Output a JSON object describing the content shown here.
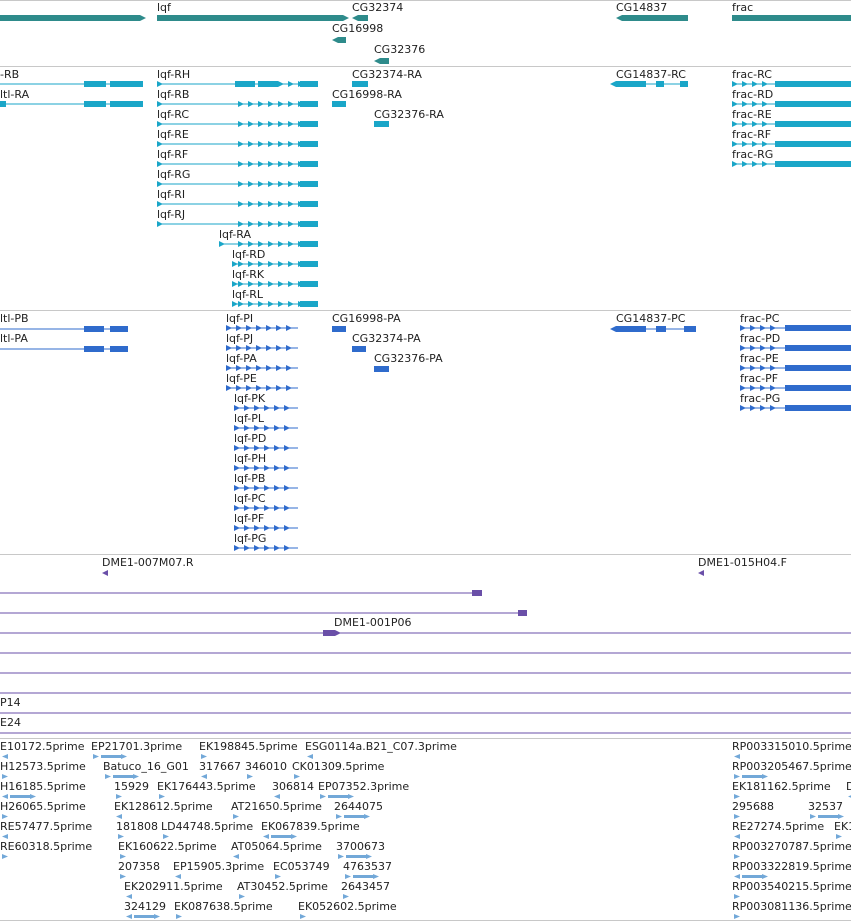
{
  "colors": {
    "gene": "#2e8b8b",
    "transcript": "#1aa6c8",
    "protein": "#2f6bcc",
    "clone": "#6a4fa8",
    "est": "#72a8d8",
    "divider": "#c8c8c8"
  },
  "tracks": {
    "genes": {
      "labels": [
        "lqf",
        "CG32374",
        "CG16998",
        "CG32376",
        "CG14837",
        "frac"
      ]
    },
    "transcripts": {
      "labels": [
        "-RB",
        "ltl-RA",
        "lqf-RH",
        "lqf-RB",
        "lqf-RC",
        "lqf-RE",
        "lqf-RF",
        "lqf-RG",
        "lqf-RI",
        "lqf-RJ",
        "lqf-RA",
        "lqf-RD",
        "lqf-RK",
        "lqf-RL",
        "CG32374-RA",
        "CG16998-RA",
        "CG32376-RA",
        "CG14837-RC",
        "frac-RC",
        "frac-RD",
        "frac-RE",
        "frac-RF",
        "frac-RG"
      ]
    },
    "proteins": {
      "labels": [
        "ltl-PB",
        "ltl-PA",
        "lqf-PI",
        "lqf-PJ",
        "lqf-PA",
        "lqf-PE",
        "lqf-PK",
        "lqf-PL",
        "lqf-PD",
        "lqf-PH",
        "lqf-PB",
        "lqf-PC",
        "lqf-PF",
        "lqf-PG",
        "CG16998-PA",
        "CG32374-PA",
        "CG32376-PA",
        "CG14837-PC",
        "frac-PC",
        "frac-PD",
        "frac-PE",
        "frac-PF",
        "frac-PG"
      ]
    },
    "clones": {
      "labels": [
        "DME1-007M07.R",
        "DME1-015H04.F",
        "DME1-001P06",
        "P14",
        "E24"
      ]
    },
    "ests": {
      "labels": [
        "E10172.5prime",
        "EP21701.3prime",
        "EK198845.5prime",
        "ESG0114a.B21_C07.3prime",
        "H12573.5prime",
        "Batuco_16_G01",
        "317667",
        "346010",
        "CK01309.5prime",
        "H16185.5prime",
        "15929",
        "EK176443.5prime",
        "306814",
        "EP07352.3prime",
        "H26065.5prime",
        "EK128612.5prime",
        "AT21650.5prime",
        "2644075",
        "RE57477.5prime",
        "181808",
        "LD44748.5prime",
        "EK067839.5prime",
        "RE60318.5prime",
        "EK160622.5prime",
        "AT05064.5prime",
        "3700673",
        "207358",
        "EP15905.3prime",
        "EC053749",
        "4763537",
        "EK202911.5prime",
        "AT30452.5prime",
        "2643457",
        "324129",
        "EK087638.5prime",
        "EK052602.5prime",
        "RP003315010.5prime",
        "RP003205467.5prime",
        "EK181162.5prime",
        "D",
        "295688",
        "32537",
        "RE27274.5prime",
        "EK1",
        "RP003270787.5prime",
        "RP003322819.5prime",
        "RP003540215.5prime",
        "RP003081136.5prime"
      ]
    }
  }
}
